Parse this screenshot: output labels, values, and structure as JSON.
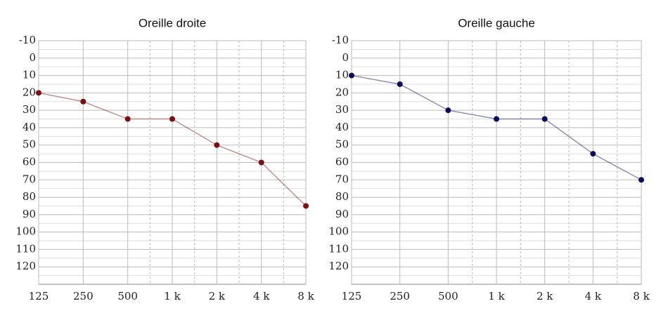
{
  "chart_data": [
    {
      "type": "line",
      "title": "Oreille droite",
      "categories": [
        "125",
        "250",
        "500",
        "1 k",
        "2 k",
        "4 k",
        "8 k"
      ],
      "series": [
        {
          "color": "#7a1010",
          "values": [
            20,
            25,
            35,
            35,
            50,
            60,
            85
          ]
        }
      ],
      "ylim": [
        -10,
        130
      ],
      "y_inverted": true,
      "yticks": [
        -10,
        0,
        10,
        20,
        30,
        40,
        50,
        60,
        70,
        80,
        90,
        100,
        110,
        120
      ],
      "grid": true
    },
    {
      "type": "line",
      "title": "Oreille gauche",
      "categories": [
        "125",
        "250",
        "500",
        "1 k",
        "2 k",
        "4 k",
        "8 k"
      ],
      "series": [
        {
          "color": "#0c0c5c",
          "values": [
            10,
            15,
            30,
            35,
            35,
            55,
            70
          ]
        }
      ],
      "ylim": [
        -10,
        130
      ],
      "y_inverted": true,
      "yticks": [
        -10,
        0,
        10,
        20,
        30,
        40,
        50,
        60,
        70,
        80,
        90,
        100,
        110,
        120
      ],
      "grid": true
    }
  ]
}
